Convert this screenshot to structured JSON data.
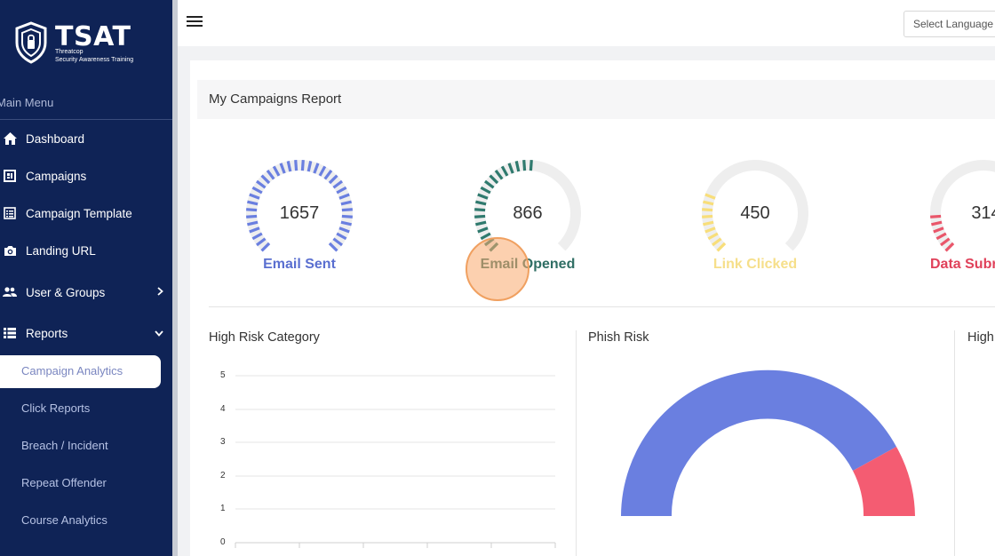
{
  "brand": {
    "name": "TSAT",
    "sub1": "Threatcop",
    "sub2": "Security Awareness Training"
  },
  "sidebar": {
    "section_label": "Main Menu",
    "items": [
      {
        "label": "Dashboard",
        "icon": "home-icon"
      },
      {
        "label": "Campaigns",
        "icon": "campaigns-icon"
      },
      {
        "label": "Campaign Template",
        "icon": "template-icon"
      },
      {
        "label": "Landing URL",
        "icon": "camera-icon"
      },
      {
        "label": "User & Groups",
        "icon": "users-icon"
      },
      {
        "label": "Reports",
        "icon": "list-icon"
      }
    ],
    "sub_items": [
      {
        "label": "Campaign Analytics"
      },
      {
        "label": "Click Reports"
      },
      {
        "label": "Breach / Incident"
      },
      {
        "label": "Repeat Offender"
      },
      {
        "label": "Course Analytics"
      }
    ]
  },
  "topbar": {
    "language_placeholder": "Select Language"
  },
  "report": {
    "title": "My Campaigns Report",
    "gauges": [
      {
        "value": "1657",
        "label": "Email Sent",
        "color": "#6a7fe0"
      },
      {
        "value": "866",
        "label": "Email Opened",
        "color": "#2f7a6e"
      },
      {
        "value": "450",
        "label": "Link Clicked",
        "color": "#f8de7a"
      },
      {
        "value": "314",
        "label": "Data Subr",
        "color": "#e9566a"
      }
    ]
  },
  "panels": {
    "high_risk_category": {
      "title": "High Risk Category",
      "y_ticks": [
        "5",
        "4",
        "3",
        "2",
        "1",
        "0"
      ]
    },
    "phish_risk": {
      "title": "Phish Risk",
      "colors": [
        "#6a7fe0",
        "#f45c72"
      ]
    },
    "third": {
      "title": "High"
    }
  }
}
